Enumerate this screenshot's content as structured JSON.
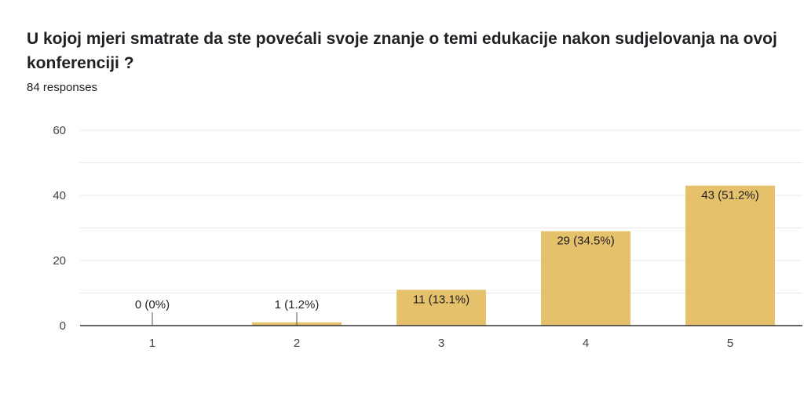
{
  "question": {
    "title": "U kojoj mjeri smatrate da ste povećali svoje znanje o temi edukacije nakon sudjelovanja na ovoj konferenciji ?",
    "responses": "84 responses"
  },
  "colors": {
    "bar": "#e6c16c",
    "grid": "#e8e8e8",
    "axis": "#333333",
    "label_line": "#555555"
  },
  "chart_data": {
    "type": "bar",
    "categories": [
      "1",
      "2",
      "3",
      "4",
      "5"
    ],
    "values": [
      0,
      1,
      11,
      29,
      43
    ],
    "labels": [
      "0 (0%)",
      "1 (1.2%)",
      "11 (13.1%)",
      "29 (34.5%)",
      "43 (51.2%)"
    ],
    "yticks": [
      "0",
      "20",
      "40",
      "60"
    ],
    "ylim": [
      0,
      60
    ],
    "grid": true,
    "legend": "none"
  }
}
